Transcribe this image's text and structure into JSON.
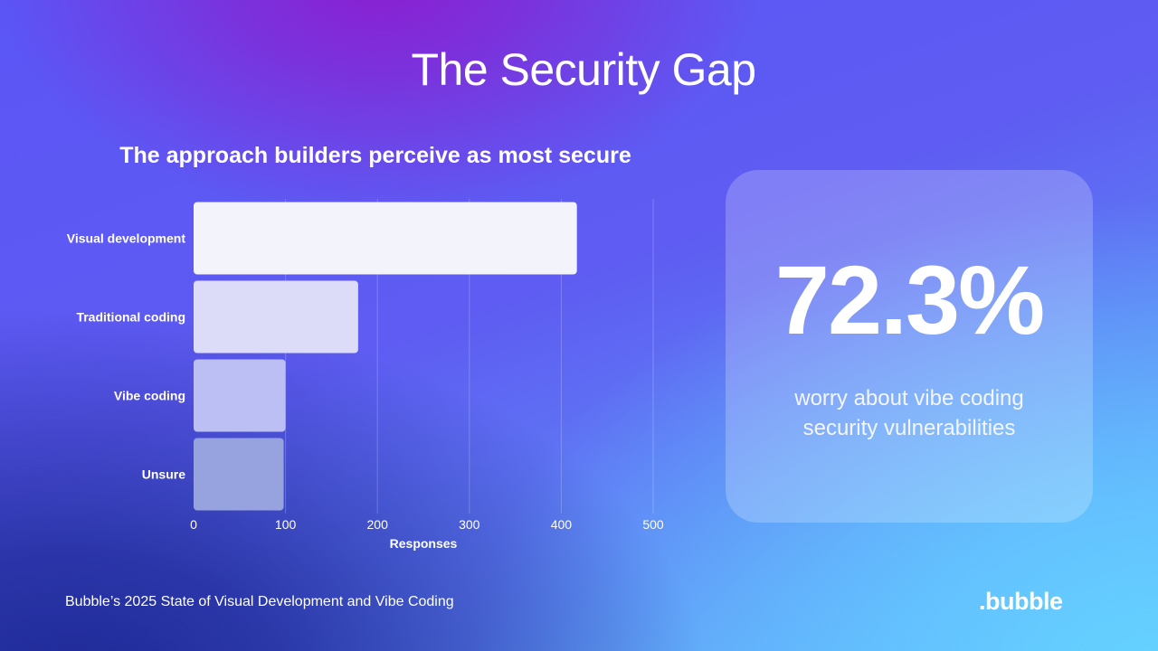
{
  "page": {
    "title": "The Security Gap",
    "footer": "Bubble’s 2025 State of Visual Development and Vibe Coding",
    "logo": ".bubble"
  },
  "stat": {
    "value": "72.3%",
    "caption": "worry about vibe coding security vulnerabilities"
  },
  "chart_data": {
    "type": "bar",
    "orientation": "horizontal",
    "title": "The approach builders perceive as most secure",
    "categories": [
      "Visual development",
      "Traditional coding",
      "Vibe coding",
      "Unsure"
    ],
    "values": [
      417,
      179,
      100,
      98
    ],
    "xlabel": "Responses",
    "ylabel": "",
    "xlim": [
      0,
      500
    ],
    "xticks": [
      0,
      100,
      200,
      300,
      400,
      500
    ],
    "grid": "vertical",
    "legend": "none",
    "colors": [
      "#f3f3fb",
      "#dcdcf8",
      "#bcbff3",
      "#97a3de"
    ]
  }
}
